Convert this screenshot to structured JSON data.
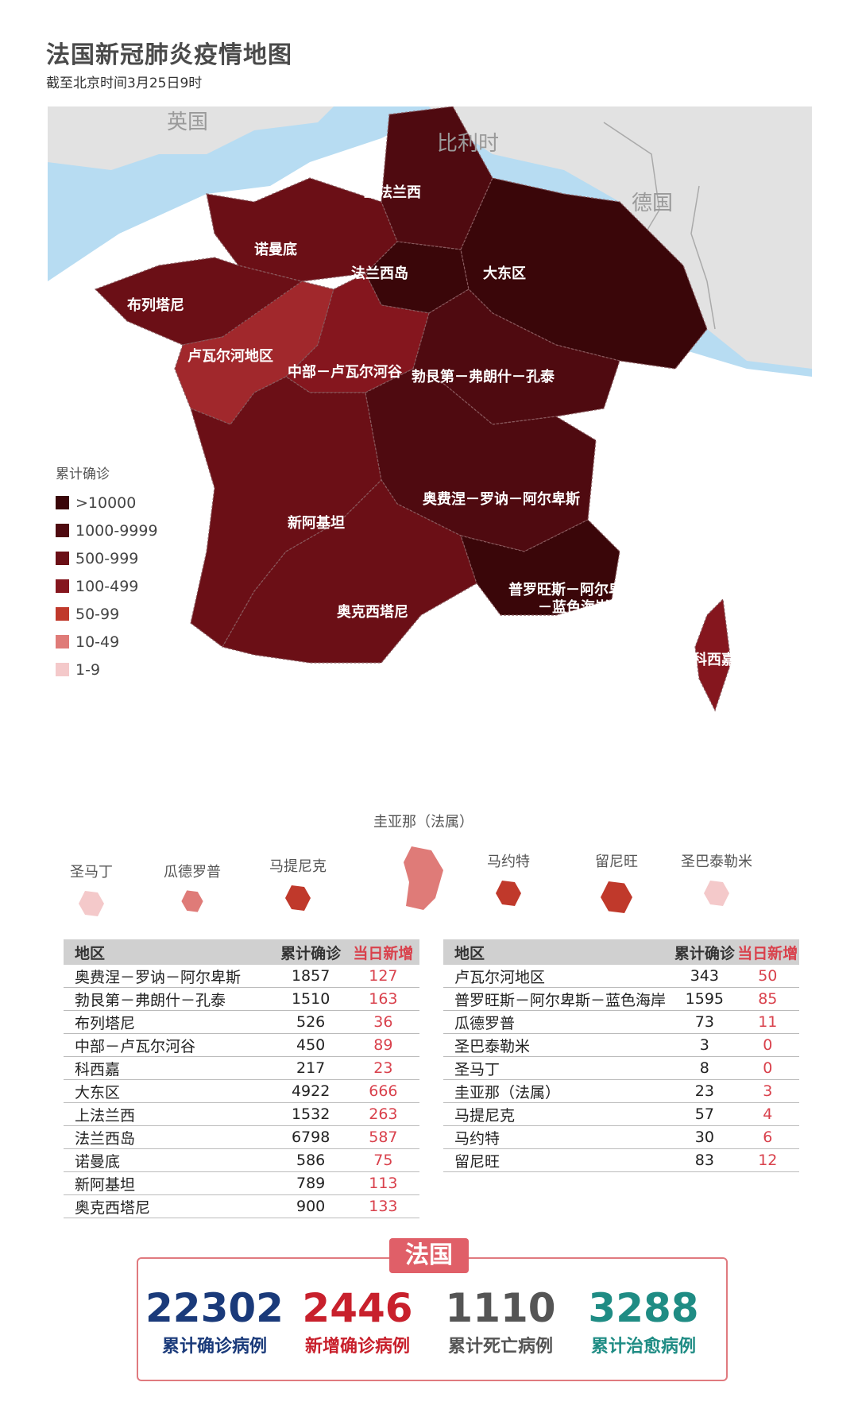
{
  "header": {
    "title": "法国新冠肺炎疫情地图",
    "subtitle": "截至北京时间3月25日9时"
  },
  "map": {
    "countries": [
      "英国",
      "比利时",
      "德国"
    ],
    "regions": {
      "hauts": "上法兰西",
      "normandie": "诺曼底",
      "idf": "法兰西岛",
      "grandest": "大东区",
      "bretagne": "布列塔尼",
      "pdl": "卢瓦尔河地区",
      "cvl": "中部－卢瓦尔河谷",
      "bfc": "勃艮第－弗朗什－孔泰",
      "naq": "新阿基坦",
      "ara": "奥费涅－罗讷－阿尔卑斯",
      "occ": "奥克西塔尼",
      "paca_1": "普罗旺斯－阿尔卑斯",
      "paca_2": "－蓝色海岸",
      "corse": "科西嘉"
    },
    "colors": {
      "sea": "#b7dcf2",
      "land_other": "#e2e2e2",
      "c_10000": "#3a0609",
      "c_1000": "#4f0a10",
      "c_500": "#6b0f16",
      "c_100": "#85161e",
      "c_50": "#c0392b",
      "c_10": "#df7b78",
      "c_1": "#f4c9ca"
    }
  },
  "legend": {
    "title": "累计确诊",
    "items": [
      {
        "label": ">10000",
        "color": "#3a0609"
      },
      {
        "label": "1000-9999",
        "color": "#4f0a10"
      },
      {
        "label": "500-999",
        "color": "#6b0f16"
      },
      {
        "label": "100-499",
        "color": "#85161e"
      },
      {
        "label": "50-99",
        "color": "#c0392b"
      },
      {
        "label": "10-49",
        "color": "#df7b78"
      },
      {
        "label": "1-9",
        "color": "#f4c9ca"
      }
    ]
  },
  "overseas": {
    "title": "圭亚那（法属）",
    "items": [
      "圣马丁",
      "瓜德罗普",
      "马提尼克",
      "马约特",
      "留尼旺",
      "圣巴泰勒米"
    ]
  },
  "table_left": {
    "headers": [
      "地区",
      "累计确诊",
      "当日新增"
    ],
    "rows": [
      [
        "奥费涅－罗讷－阿尔卑斯",
        "1857",
        "127"
      ],
      [
        "勃艮第－弗朗什－孔泰",
        "1510",
        "163"
      ],
      [
        "布列塔尼",
        "526",
        "36"
      ],
      [
        "中部－卢瓦尔河谷",
        "450",
        "89"
      ],
      [
        "科西嘉",
        "217",
        "23"
      ],
      [
        "大东区",
        "4922",
        "666"
      ],
      [
        "上法兰西",
        "1532",
        "263"
      ],
      [
        "法兰西岛",
        "6798",
        "587"
      ],
      [
        "诺曼底",
        "586",
        "75"
      ],
      [
        "新阿基坦",
        "789",
        "113"
      ],
      [
        "奥克西塔尼",
        "900",
        "133"
      ]
    ]
  },
  "table_right": {
    "headers": [
      "地区",
      "累计确诊",
      "当日新增"
    ],
    "rows": [
      [
        "卢瓦尔河地区",
        "343",
        "50"
      ],
      [
        "普罗旺斯－阿尔卑斯－蓝色海岸",
        "1595",
        "85"
      ],
      [
        "瓜德罗普",
        "73",
        "11"
      ],
      [
        "圣巴泰勒米",
        "3",
        "0"
      ],
      [
        "圣马丁",
        "8",
        "0"
      ],
      [
        "圭亚那（法属）",
        "23",
        "3"
      ],
      [
        "马提尼克",
        "57",
        "4"
      ],
      [
        "马约特",
        "30",
        "6"
      ],
      [
        "留尼旺",
        "83",
        "12"
      ]
    ]
  },
  "summary": {
    "tag": "法国",
    "stats": [
      {
        "value": "22302",
        "label": "累计确诊病例",
        "color": "#1a3a7a"
      },
      {
        "value": "2446",
        "label": "新增确诊病例",
        "color": "#c8202c"
      },
      {
        "value": "1110",
        "label": "累计死亡病例",
        "color": "#555555"
      },
      {
        "value": "3288",
        "label": "累计治愈病例",
        "color": "#1f8c84"
      }
    ]
  }
}
